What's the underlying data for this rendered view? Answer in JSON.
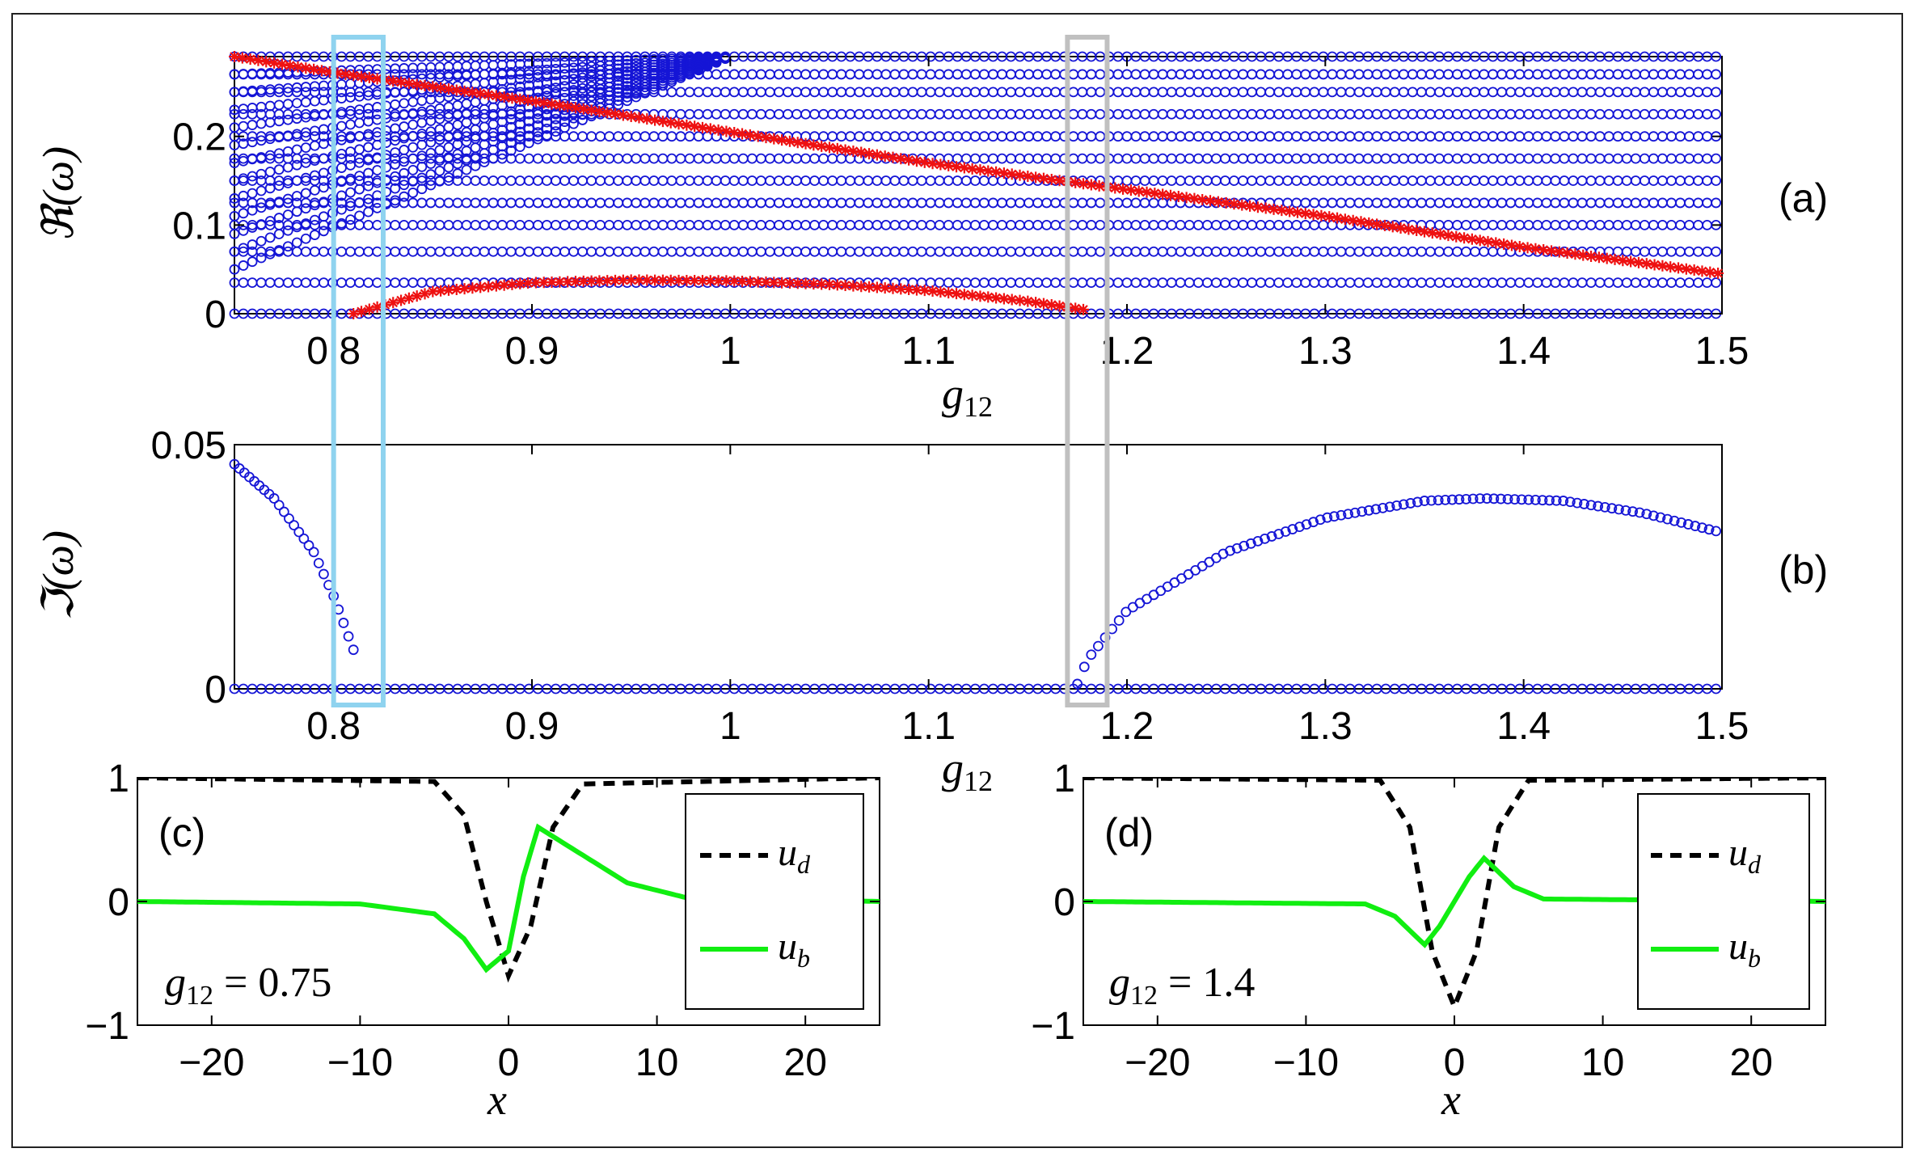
{
  "chart_data": [
    {
      "id": "a",
      "type": "scatter",
      "panel_label": "(a)",
      "xlabel_var": "g",
      "xlabel_sub": "12",
      "ylabel": "ℜ(ω)",
      "xlim": [
        0.75,
        1.5
      ],
      "ylim": [
        0,
        0.29
      ],
      "xticks": [
        "0.8",
        "0.9",
        "1",
        "1.1",
        "1.2",
        "1.3",
        "1.4",
        "1.5"
      ],
      "xtick_values": [
        0.8,
        0.9,
        1.0,
        1.1,
        1.2,
        1.3,
        1.4,
        1.5
      ],
      "yticks": [
        "0",
        "0.1",
        "0.2"
      ],
      "ytick_values": [
        0,
        0.1,
        0.2
      ],
      "horizontal_levels": [
        0,
        0.035,
        0.07,
        0.1,
        0.125,
        0.15,
        0.175,
        0.2,
        0.225,
        0.25,
        0.27,
        0.29
      ],
      "fan": {
        "x_start": 0.75,
        "x_end": 1.0,
        "y_end": 0.29,
        "y_starts": [
          0.05,
          0.07,
          0.09,
          0.11,
          0.13,
          0.15,
          0.17,
          0.19,
          0.21,
          0.23,
          0.25,
          0.27
        ]
      },
      "red_series": {
        "descending": {
          "x": [
            0.75,
            0.8,
            0.9,
            1.0,
            1.1,
            1.2,
            1.3,
            1.4,
            1.5
          ],
          "y": [
            0.29,
            0.272,
            0.24,
            0.205,
            0.17,
            0.14,
            0.11,
            0.075,
            0.045
          ]
        },
        "arch": {
          "x": [
            0.81,
            0.85,
            0.9,
            0.95,
            1.0,
            1.05,
            1.1,
            1.15,
            1.18
          ],
          "y": [
            0.0,
            0.025,
            0.035,
            0.038,
            0.037,
            0.033,
            0.026,
            0.014,
            0.004
          ]
        }
      },
      "colors": {
        "circles": "#1515d6",
        "stars": "#ee1111"
      }
    },
    {
      "id": "b",
      "type": "scatter",
      "panel_label": "(b)",
      "xlabel_var": "g",
      "xlabel_sub": "12",
      "ylabel": "ℑ(ω)",
      "xlim": [
        0.75,
        1.5
      ],
      "ylim": [
        0,
        0.05
      ],
      "xticks": [
        "0.8",
        "0.9",
        "1",
        "1.1",
        "1.2",
        "1.3",
        "1.4",
        "1.5"
      ],
      "xtick_values": [
        0.8,
        0.9,
        1.0,
        1.1,
        1.2,
        1.3,
        1.4,
        1.5
      ],
      "yticks": [
        "0",
        "0.05"
      ],
      "ytick_values": [
        0,
        0.05
      ],
      "branch_left": {
        "x": [
          0.75,
          0.77,
          0.79,
          0.8,
          0.81
        ],
        "y": [
          0.046,
          0.039,
          0.028,
          0.019,
          0.008
        ]
      },
      "branch_right": {
        "x": [
          1.175,
          1.18,
          1.2,
          1.25,
          1.3,
          1.35,
          1.38,
          1.42,
          1.46,
          1.5
        ],
        "y": [
          0.001,
          0.006,
          0.016,
          0.028,
          0.035,
          0.0385,
          0.039,
          0.0385,
          0.036,
          0.032
        ]
      },
      "colors": {
        "circles": "#1515d6"
      }
    },
    {
      "id": "c",
      "type": "line",
      "panel_label": "(c)",
      "xlabel": "x",
      "xlim": [
        -25,
        25
      ],
      "ylim": [
        -1,
        1
      ],
      "xticks": [
        "−20",
        "−10",
        "0",
        "10",
        "20"
      ],
      "xtick_values": [
        -20,
        -10,
        0,
        10,
        20
      ],
      "yticks": [
        "1",
        "0",
        "−1"
      ],
      "ytick_values": [
        1,
        0,
        -1
      ],
      "annotation_var": "g",
      "annotation_sub": "12",
      "annotation_value": " = 0.75",
      "legend": {
        "placement": "right",
        "entries": [
          {
            "var": "u",
            "sub": "d"
          },
          {
            "var": "u",
            "sub": "b"
          }
        ]
      },
      "series": [
        {
          "x": [
            -25,
            -5,
            -3,
            -1.5,
            0,
            1.5,
            3,
            5,
            25
          ],
          "y": [
            1,
            0.97,
            0.7,
            0.0,
            -0.6,
            -0.2,
            0.6,
            0.95,
            1
          ]
        },
        {
          "x": [
            -25,
            -10,
            -5,
            -3,
            -1.5,
            0,
            1,
            2,
            4,
            8,
            12,
            25
          ],
          "y": [
            0,
            -0.02,
            -0.1,
            -0.3,
            -0.55,
            -0.4,
            0.2,
            0.6,
            0.45,
            0.15,
            0.03,
            0
          ]
        }
      ],
      "colors": {
        "dashed": "#000000",
        "solid": "#11ee11"
      }
    },
    {
      "id": "d",
      "type": "line",
      "panel_label": "(d)",
      "xlabel": "x",
      "xlim": [
        -25,
        25
      ],
      "ylim": [
        -1,
        1
      ],
      "xticks": [
        "−20",
        "−10",
        "0",
        "10",
        "20"
      ],
      "xtick_values": [
        -20,
        -10,
        0,
        10,
        20
      ],
      "yticks": [
        "1",
        "0",
        "−1"
      ],
      "ytick_values": [
        1,
        0,
        -1
      ],
      "annotation_var": "g",
      "annotation_sub": "12",
      "annotation_value": " = 1.4",
      "legend": {
        "placement": "right",
        "entries": [
          {
            "var": "u",
            "sub": "d"
          },
          {
            "var": "u",
            "sub": "b"
          }
        ]
      },
      "series": [
        {
          "x": [
            -25,
            -5,
            -3,
            -1.5,
            0,
            1.5,
            3,
            5,
            25
          ],
          "y": [
            1,
            0.98,
            0.6,
            -0.4,
            -0.85,
            -0.4,
            0.6,
            0.98,
            1
          ]
        },
        {
          "x": [
            -25,
            -6,
            -4,
            -2,
            -1,
            0,
            1,
            2,
            4,
            6,
            25
          ],
          "y": [
            0,
            -0.02,
            -0.12,
            -0.35,
            -0.2,
            0.0,
            0.2,
            0.35,
            0.12,
            0.02,
            0
          ]
        }
      ],
      "colors": {
        "dashed": "#000000",
        "solid": "#11ee11"
      }
    }
  ],
  "highlight_boxes": [
    {
      "name": "highlight-box-cyan",
      "x_range": [
        0.8,
        0.825
      ],
      "color": "#8fd3ef"
    },
    {
      "name": "highlight-box-gray",
      "x_range": [
        1.17,
        1.19
      ],
      "color": "#c0c0c0"
    }
  ]
}
